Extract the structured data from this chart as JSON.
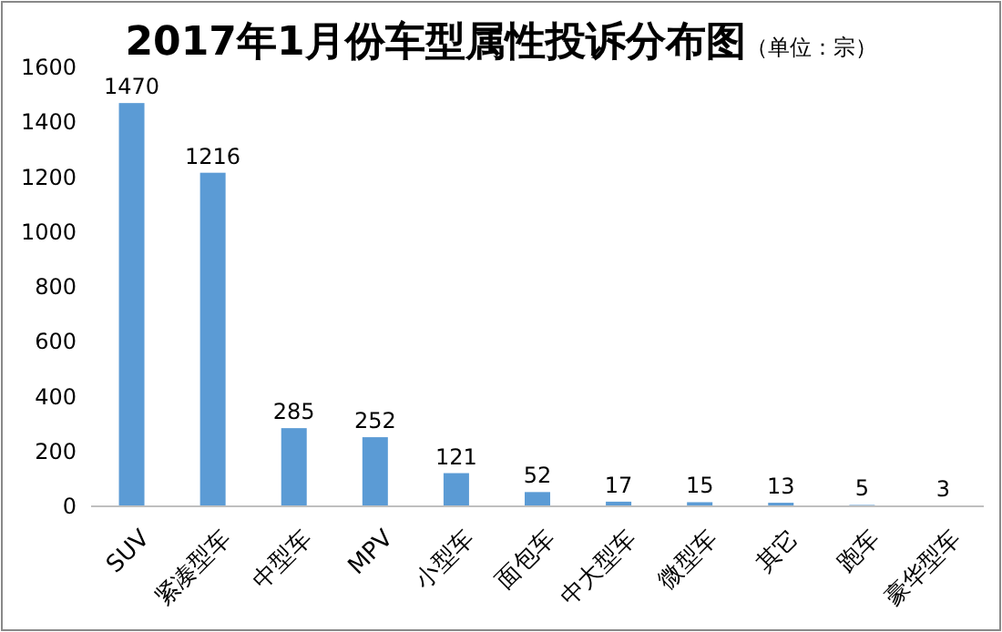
{
  "chart_data": {
    "type": "bar",
    "title": "2017年1月份车型属性投诉分布图",
    "subtitle": "（单位：宗）",
    "categories": [
      "SUV",
      "紧凑型车",
      "中型车",
      "MPV",
      "小型车",
      "面包车",
      "中大型车",
      "微型车",
      "其它",
      "跑车",
      "豪华型车"
    ],
    "values": [
      1470,
      1216,
      285,
      252,
      121,
      52,
      17,
      15,
      13,
      5,
      3
    ],
    "color": "#5b9bd5",
    "ylim": [
      0,
      1600
    ],
    "yticks": [
      0,
      200,
      400,
      600,
      800,
      1000,
      1200,
      1400,
      1600
    ],
    "grid": false,
    "data_labels": true
  }
}
